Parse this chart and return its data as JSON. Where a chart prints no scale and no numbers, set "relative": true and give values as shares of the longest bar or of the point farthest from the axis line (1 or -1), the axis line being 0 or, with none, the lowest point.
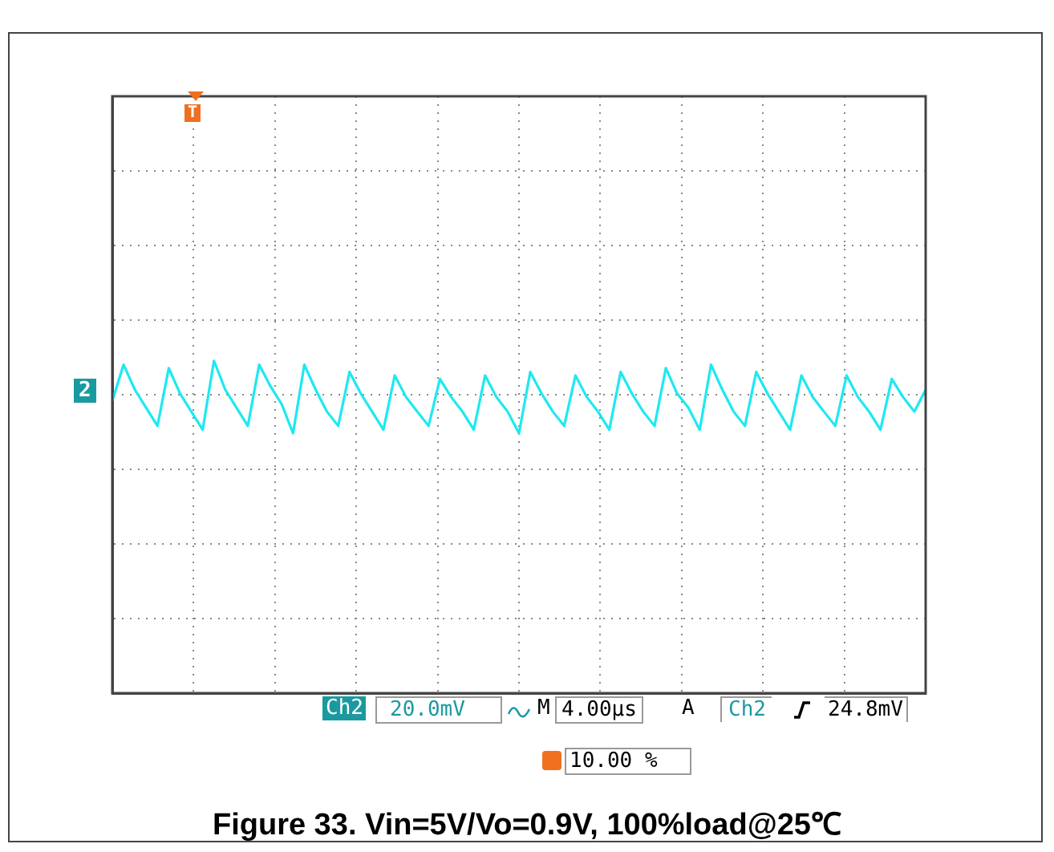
{
  "chart_data": {
    "type": "line",
    "title": "Figure 33. Vin=5V/Vo=0.9V, 100%load@25℃",
    "relative": true,
    "grid": true,
    "legend": false,
    "marker": "none",
    "line_style": "solid",
    "categories": [
      null,
      null,
      null,
      null,
      null,
      null,
      null,
      null,
      null,
      null,
      null,
      null,
      null,
      null,
      null,
      null,
      null,
      null,
      null,
      null,
      null,
      null,
      null,
      null,
      null,
      null,
      null,
      null,
      null,
      null,
      null,
      null,
      null,
      null,
      null,
      null,
      null,
      null,
      null,
      null,
      null,
      null,
      null,
      null,
      null,
      null,
      null,
      null,
      null,
      null,
      null,
      null,
      null,
      null,
      null,
      null,
      null,
      null,
      null,
      null,
      null,
      null,
      null,
      null,
      null,
      null,
      null,
      null,
      null,
      null,
      null,
      null,
      null
    ],
    "series": [
      {
        "color": "#1ee8f2",
        "values": [
          -0.16,
          0.78,
          0.13,
          -0.34,
          -0.81,
          0.69,
          0.03,
          -0.44,
          -0.91,
          0.88,
          0.13,
          -0.34,
          -0.81,
          0.78,
          0.22,
          -0.25,
          -1.0,
          0.78,
          0.13,
          -0.44,
          -0.81,
          0.59,
          0.03,
          -0.44,
          -0.91,
          0.5,
          -0.06,
          -0.44,
          -0.81,
          0.41,
          -0.06,
          -0.44,
          -0.91,
          0.5,
          -0.06,
          -0.44,
          -1.0,
          0.59,
          0.03,
          -0.44,
          -0.81,
          0.5,
          -0.06,
          -0.44,
          -0.91,
          0.59,
          0.03,
          -0.44,
          -0.81,
          0.69,
          0.03,
          -0.34,
          -0.91,
          0.78,
          0.13,
          -0.44,
          -0.81,
          0.59,
          0.03,
          -0.44,
          -0.91,
          0.5,
          -0.06,
          -0.44,
          -0.81,
          0.5,
          -0.06,
          -0.44,
          -0.91,
          0.41,
          -0.06,
          -0.44,
          0.13
        ]
      }
    ],
    "annotations": [
      "Ch2",
      "20.0mV",
      "M",
      "4.00µs",
      "A",
      "Ch2",
      "24.8mV",
      "10.00 %",
      "2",
      "T"
    ]
  }
}
